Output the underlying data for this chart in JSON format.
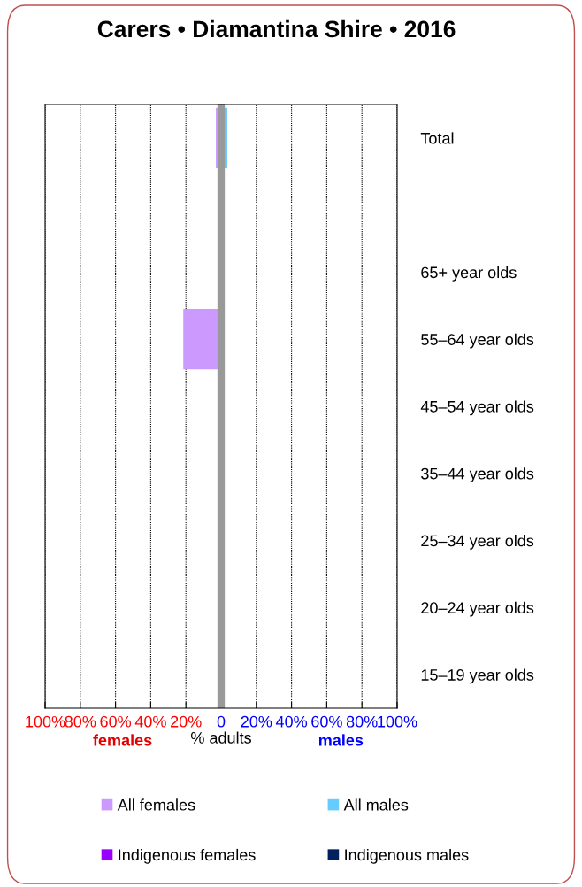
{
  "chart_data": {
    "type": "bar",
    "orientation": "horizontal",
    "title": "Carers • Diamantina Shire • 2016",
    "xlabel": "% adults",
    "annotations": [
      "females",
      "males"
    ],
    "categories": [
      "Total",
      null,
      "65+ year olds",
      "55–64 year olds",
      "45–54 year olds",
      "35–44 year olds",
      "25–34 year olds",
      "20–24 year olds",
      "15–19 year olds"
    ],
    "series": [
      {
        "name": "All females",
        "color": "#cc99ff",
        "values": [
          -3,
          null,
          null,
          -21.5,
          null,
          null,
          null,
          null,
          null
        ]
      },
      {
        "name": "All males",
        "color": "#66ccff",
        "values": [
          3.5,
          null,
          null,
          null,
          null,
          null,
          null,
          null,
          null
        ]
      },
      {
        "name": "Indigenous females",
        "color": "#9900ff",
        "values": [
          null,
          null,
          null,
          null,
          null,
          null,
          null,
          null,
          null
        ]
      },
      {
        "name": "Indigenous males",
        "color": "#002060",
        "values": [
          null,
          null,
          null,
          null,
          null,
          null,
          null,
          null,
          null
        ]
      }
    ],
    "xlim": [
      -100,
      100
    ],
    "xticks": [
      {
        "value": -100,
        "label": "100%"
      },
      {
        "value": -80,
        "label": "80%"
      },
      {
        "value": -60,
        "label": "60%"
      },
      {
        "value": -40,
        "label": "40%"
      },
      {
        "value": -20,
        "label": "20%"
      },
      0,
      {
        "value": 20,
        "label": "20%"
      },
      {
        "value": 40,
        "label": "40%"
      },
      {
        "value": 60,
        "label": "60%"
      },
      {
        "value": 80,
        "label": "80%"
      },
      {
        "value": 100,
        "label": "100%"
      }
    ],
    "ref_lines": [
      {
        "axis": "x",
        "value": 0,
        "color": "#999999"
      }
    ],
    "grid": "x",
    "legend": "bottom"
  }
}
